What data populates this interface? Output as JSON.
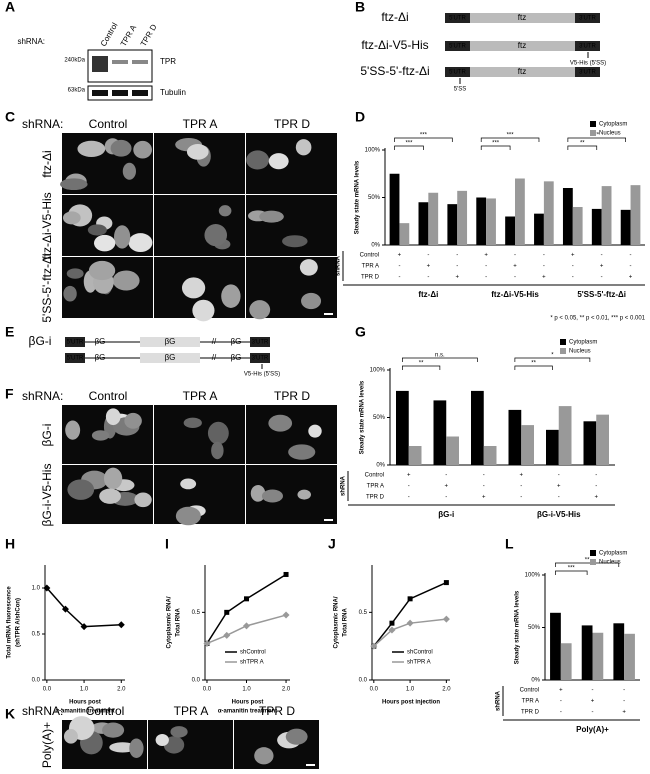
{
  "panel_labels": [
    "A",
    "B",
    "C",
    "D",
    "E",
    "F",
    "G",
    "H",
    "I",
    "J",
    "K",
    "L"
  ],
  "blot": {
    "shrna_label": "shRNA:",
    "lanes": [
      "Control",
      "TPR A",
      "TPR D"
    ],
    "markers": [
      "240kDa",
      "63kDa"
    ],
    "proteins": [
      "TPR",
      "Tubulin"
    ]
  },
  "constructs_b": {
    "rows": [
      {
        "name": "ftz-Δi",
        "segments": [
          "5'UTR",
          "ftz",
          "3'UTR"
        ]
      },
      {
        "name": "ftz-Δi-V5-His",
        "segments": [
          "5'UTR",
          "ftz",
          "3'UTR"
        ],
        "note": "V5-His (5'SS)"
      },
      {
        "name": "5'SS-5'-ftz-Δi",
        "segments": [
          "5'UTR",
          "ftz",
          "3'UTR"
        ],
        "note": "5'SS"
      }
    ]
  },
  "constructs_e": {
    "name": "βG-i",
    "rows": [
      {
        "segments": [
          "5'UTR",
          "βG",
          "βG",
          "βG",
          "3'UTR"
        ]
      },
      {
        "segments": [
          "5'UTR",
          "βG",
          "βG",
          "βG",
          "3'UTR"
        ],
        "note": "V5-His (5'SS)"
      }
    ]
  },
  "micro_c": {
    "shrna_label": "shRNA:",
    "columns": [
      "Control",
      "TPR A",
      "TPR D"
    ],
    "rows": [
      "ftz-Δi",
      "ftz-Δi-V5-His",
      "5'SS-5'-ftz-Δi"
    ]
  },
  "micro_f": {
    "shrna_label": "shRNA:",
    "columns": [
      "Control",
      "TPR A",
      "TPR D"
    ],
    "rows": [
      "βG-i",
      "βG-i-V5-His"
    ]
  },
  "micro_k": {
    "shrna_label": "shRNA:",
    "columns": [
      "Control",
      "TPR A",
      "TPR D"
    ],
    "rows": [
      "Poly(A)+"
    ]
  },
  "chart_d": {
    "type": "bar",
    "ylabel": "Steady state mRNA levels",
    "ylim": [
      0,
      100
    ],
    "yticks": [
      {
        "value": 0,
        "label": "0%"
      },
      {
        "value": 50,
        "label": "50%"
      },
      {
        "value": 100,
        "label": "100%"
      }
    ],
    "series": [
      {
        "name": "Cytoplasm",
        "color": "#000000",
        "values": [
          75,
          45,
          43,
          50,
          30,
          33,
          60,
          38,
          37
        ]
      },
      {
        "name": "Nucleus",
        "color": "#999999",
        "values": [
          23,
          55,
          57,
          49,
          70,
          67,
          40,
          62,
          63
        ]
      }
    ],
    "groups": [
      "ftz-Δi",
      "ftz-Δi-V5-His",
      "5'SS-5'-ftz-Δi"
    ],
    "table_label": "shRNA",
    "table": {
      "rows": [
        "Control",
        "TPR A",
        "TPR D"
      ],
      "cells": [
        [
          "+",
          "-",
          "-",
          "+",
          "-",
          "-",
          "+",
          "-",
          "-"
        ],
        [
          "-",
          "+",
          "-",
          "-",
          "+",
          "-",
          "-",
          "+",
          "-"
        ],
        [
          "-",
          "-",
          "+",
          "-",
          "-",
          "+",
          "-",
          "-",
          "+"
        ]
      ]
    },
    "brackets": [
      {
        "label": "***",
        "between": [
          0,
          1
        ]
      },
      {
        "label": "***",
        "between": [
          0,
          2
        ]
      },
      {
        "label": "***",
        "between": [
          3,
          4
        ]
      },
      {
        "label": "***",
        "between": [
          3,
          5
        ]
      },
      {
        "label": "**",
        "between": [
          6,
          7
        ]
      },
      {
        "label": "**",
        "between": [
          6,
          8
        ]
      }
    ],
    "legend": "upper right"
  },
  "footnote": "* p < 0.05, ** p < 0.01, *** p < 0.001",
  "chart_g": {
    "type": "bar",
    "ylabel": "Steady state mRNA levels",
    "ylim": [
      0,
      100
    ],
    "yticks": [
      {
        "value": 0,
        "label": "0%"
      },
      {
        "value": 50,
        "label": "50%"
      },
      {
        "value": 100,
        "label": "100%"
      }
    ],
    "series": [
      {
        "name": "Cytoplasm",
        "color": "#000000",
        "values": [
          78,
          68,
          78,
          58,
          37,
          46
        ]
      },
      {
        "name": "Nucleus",
        "color": "#999999",
        "values": [
          20,
          30,
          20,
          42,
          62,
          53
        ]
      }
    ],
    "groups": [
      "βG-i",
      "βG-i-V5-His"
    ],
    "table_label": "shRNA",
    "table": {
      "rows": [
        "Control",
        "TPR A",
        "TPR D"
      ],
      "cells": [
        [
          "+",
          "-",
          "-",
          "+",
          "-",
          "-"
        ],
        [
          "-",
          "+",
          "-",
          "-",
          "+",
          "-"
        ],
        [
          "-",
          "-",
          "+",
          "-",
          "-",
          "+"
        ]
      ]
    },
    "brackets": [
      {
        "label": "**",
        "between": [
          0,
          1
        ]
      },
      {
        "label": "n.s.",
        "between": [
          0,
          2
        ]
      },
      {
        "label": "**",
        "between": [
          3,
          4
        ]
      },
      {
        "label": "*",
        "between": [
          3,
          5
        ]
      }
    ],
    "legend": "upper right"
  },
  "chart_h": {
    "type": "line",
    "ylabel": [
      "Total mRNA fluorescence",
      "(shTPR A/shCon)"
    ],
    "xlabel": [
      "Hours post",
      "α-amanitin treatment"
    ],
    "x": [
      0,
      0.5,
      1,
      2
    ],
    "xlim": [
      -0.05,
      2.1
    ],
    "xticks": [
      {
        "value": 0,
        "label": "0.0"
      },
      {
        "value": 1,
        "label": "1.0"
      },
      {
        "value": 2,
        "label": "2.0"
      }
    ],
    "ylim": [
      0,
      1.25
    ],
    "yticks": [
      {
        "value": 0,
        "label": "0.0"
      },
      {
        "value": 0.5,
        "label": "0.5"
      },
      {
        "value": 1,
        "label": "1.0"
      }
    ],
    "series": [
      {
        "color": "#000000",
        "marker": "diamond",
        "values": [
          1.0,
          0.77,
          0.58,
          0.6
        ]
      }
    ]
  },
  "chart_i": {
    "type": "line",
    "ylabel": [
      "Cytoplasmic RNA/",
      "Total RNA"
    ],
    "xlabel": [
      "Hours post",
      "α-amanitin treatment"
    ],
    "x": [
      0,
      0.5,
      1,
      2
    ],
    "xlim": [
      -0.05,
      2.1
    ],
    "xticks": [
      {
        "value": 0,
        "label": "0.0"
      },
      {
        "value": 1,
        "label": "1.0"
      },
      {
        "value": 2,
        "label": "2.0"
      }
    ],
    "ylim": [
      0,
      0.85
    ],
    "yticks": [
      {
        "value": 0,
        "label": "0.0"
      },
      {
        "value": 0.5,
        "label": "0.5"
      }
    ],
    "series": [
      {
        "name": "shControl",
        "color": "#000000",
        "marker": "square",
        "values": [
          0.27,
          0.5,
          0.6,
          0.78
        ]
      },
      {
        "name": "shTPR A",
        "color": "#999999",
        "marker": "diamond",
        "values": [
          0.27,
          0.33,
          0.4,
          0.48
        ]
      }
    ],
    "legend": "lower right"
  },
  "chart_j": {
    "type": "line",
    "ylabel": [
      "Cytoplasmic RNA/",
      "Total RNA"
    ],
    "xlabel": [
      "Hours post injection"
    ],
    "x": [
      0,
      0.5,
      1,
      2
    ],
    "xlim": [
      -0.05,
      2.1
    ],
    "xticks": [
      {
        "value": 0,
        "label": "0.0"
      },
      {
        "value": 1,
        "label": "1.0"
      },
      {
        "value": 2,
        "label": "2.0"
      }
    ],
    "ylim": [
      0,
      0.85
    ],
    "yticks": [
      {
        "value": 0,
        "label": "0.0"
      },
      {
        "value": 0.5,
        "label": "0.5"
      }
    ],
    "series": [
      {
        "name": "shControl",
        "color": "#000000",
        "marker": "square",
        "values": [
          0.25,
          0.42,
          0.6,
          0.72
        ]
      },
      {
        "name": "shTPR A",
        "color": "#999999",
        "marker": "diamond",
        "values": [
          0.25,
          0.37,
          0.42,
          0.45
        ]
      }
    ],
    "legend": "lower right"
  },
  "chart_l": {
    "type": "bar",
    "ylabel": "Steady state mRNA levels",
    "ylim": [
      0,
      100
    ],
    "yticks": [
      {
        "value": 0,
        "label": "0%"
      },
      {
        "value": 50,
        "label": "50%"
      },
      {
        "value": 100,
        "label": "100%"
      }
    ],
    "series": [
      {
        "name": "Cytoplasm",
        "color": "#000000",
        "values": [
          64,
          52,
          54
        ]
      },
      {
        "name": "Nucleus",
        "color": "#999999",
        "values": [
          35,
          45,
          44
        ]
      }
    ],
    "groups": [
      "Poly(A)+"
    ],
    "table_label": "shRNA",
    "table": {
      "rows": [
        "Control",
        "TPR A",
        "TPR D"
      ],
      "cells": [
        [
          "+",
          "-",
          "-"
        ],
        [
          "-",
          "+",
          "-"
        ],
        [
          "-",
          "-",
          "+"
        ]
      ]
    },
    "brackets": [
      {
        "label": "***",
        "between": [
          0,
          1
        ]
      },
      {
        "label": "**",
        "between": [
          0,
          2
        ]
      }
    ],
    "legend": "upper right"
  }
}
